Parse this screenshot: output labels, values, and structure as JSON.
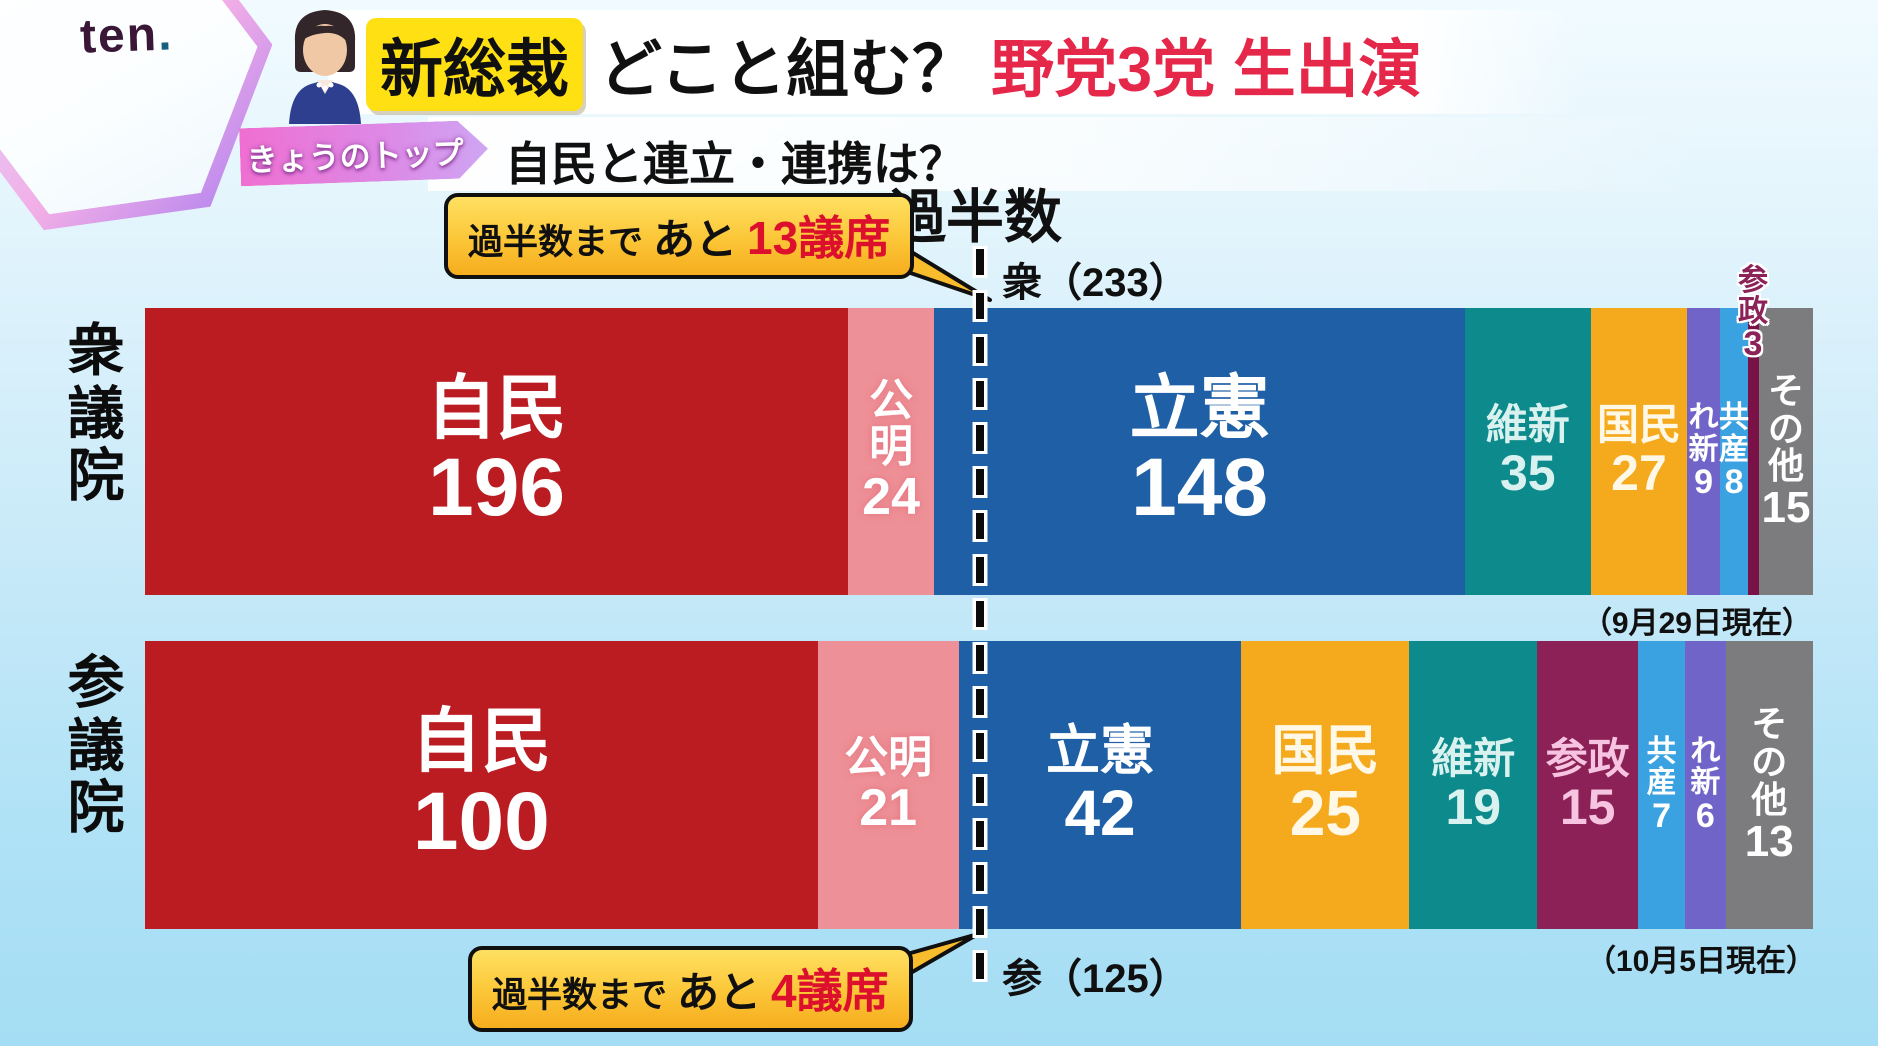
{
  "brand": {
    "logo_text": "ten",
    "logo_dot": "."
  },
  "header": {
    "badge": "新総裁",
    "title_black": "どこと組む？",
    "title_red": "野党3党 生出演",
    "topic_badge": "きょうのトップ",
    "subtitle": "自民と連立・連携は？"
  },
  "majority": {
    "title": "過半数",
    "callout_top": {
      "prefix": "過半数まで",
      "mid": "あと",
      "value": "13議席"
    },
    "callout_bottom": {
      "prefix": "過半数まで",
      "mid": "あと",
      "value": "4議席"
    }
  },
  "chart_data": {
    "type": "bar",
    "subtype": "stacked-horizontal",
    "unit": "議席",
    "bars": [
      {
        "chamber": "衆議院",
        "total": 465,
        "majority": 233,
        "majority_label": "衆（233）",
        "as_of": "（9月29日現在）",
        "segments": [
          {
            "party": "自民",
            "seats": 196,
            "color": "#bb1c22",
            "text": "#ffffff",
            "size": "xl",
            "orient": "h"
          },
          {
            "party": "公明",
            "seats": 24,
            "color": "#ee9097",
            "text": "#ffffff",
            "size": "md",
            "orient": "h"
          },
          {
            "party": "立憲",
            "seats": 148,
            "color": "#1e5fa6",
            "text": "#ffffff",
            "size": "xl",
            "orient": "h"
          },
          {
            "party": "維新",
            "seats": 35,
            "color": "#0d8a8b",
            "text": "#d9f2f0",
            "size": "sm",
            "orient": "h"
          },
          {
            "party": "国民",
            "seats": 27,
            "color": "#f5a91c",
            "text": "#fff8e6",
            "size": "sm",
            "orient": "h"
          },
          {
            "party": "れ新",
            "seats": 9,
            "color": "#7064c8",
            "text": "#ffffff",
            "size": "xs",
            "orient": "v"
          },
          {
            "party": "共産",
            "seats": 8,
            "color": "#3ba2e2",
            "text": "#ffffff",
            "size": "xs",
            "orient": "v"
          },
          {
            "party": "参政",
            "seats": 3,
            "color": "#7a1247",
            "text": "#8b2258",
            "size": "xs",
            "orient": "out"
          },
          {
            "party": "その他",
            "seats": 15,
            "color": "#7c7c7e",
            "text": "#ffffff",
            "size": "xv",
            "orient": "v"
          }
        ]
      },
      {
        "chamber": "参議院",
        "total": 248,
        "majority": 125,
        "majority_label": "参（125）",
        "as_of": "（10月5日現在）",
        "segments": [
          {
            "party": "自民",
            "seats": 100,
            "color": "#bb1c22",
            "text": "#ffffff",
            "size": "xl",
            "orient": "h"
          },
          {
            "party": "公明",
            "seats": 21,
            "color": "#ee9097",
            "text": "#ffffff",
            "size": "md",
            "orient": "h"
          },
          {
            "party": "立憲",
            "seats": 42,
            "color": "#1e5fa6",
            "text": "#ffffff",
            "size": "lg",
            "orient": "h"
          },
          {
            "party": "国民",
            "seats": 25,
            "color": "#f5a91c",
            "text": "#fff8e6",
            "size": "lg",
            "orient": "h"
          },
          {
            "party": "維新",
            "seats": 19,
            "color": "#0d8a8b",
            "text": "#d9f2f0",
            "size": "sm",
            "orient": "h"
          },
          {
            "party": "参政",
            "seats": 15,
            "color": "#8b2156",
            "text": "#f6c3e0",
            "size": "sm",
            "orient": "h"
          },
          {
            "party": "共産",
            "seats": 7,
            "color": "#3ba2e2",
            "text": "#ffffff",
            "size": "xs",
            "orient": "v"
          },
          {
            "party": "れ新",
            "seats": 6,
            "color": "#7064c8",
            "text": "#ffffff",
            "size": "xs",
            "orient": "v"
          },
          {
            "party": "その他",
            "seats": 13,
            "color": "#7c7c7e",
            "text": "#ffffff",
            "size": "xv",
            "orient": "v"
          }
        ]
      }
    ],
    "threshold_line": {
      "label_top": "衆（233）",
      "label_bottom": "参（125）",
      "style": "dashed"
    }
  }
}
